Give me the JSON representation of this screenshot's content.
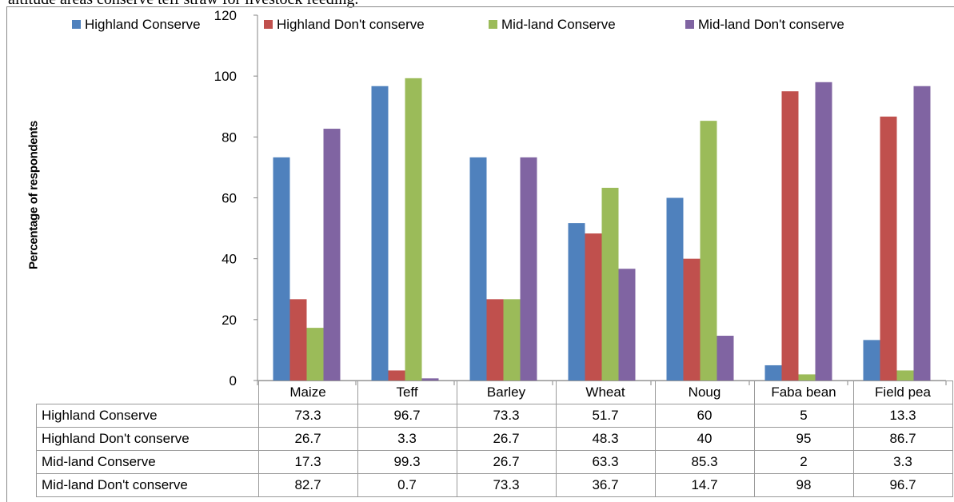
{
  "caption": "altitude areas conserve teff straw for livestock feeding.",
  "chart_data": {
    "type": "bar",
    "ylabel": "Percentage of respondents",
    "ylim": [
      0,
      120
    ],
    "yticks": [
      "0",
      "20",
      "40",
      "60",
      "80",
      "100",
      "120"
    ],
    "categories": [
      "Maize",
      "Teff",
      "Barley",
      "Wheat",
      "Noug",
      "Faba bean",
      "Field pea"
    ],
    "legend_position": "top",
    "grid": false,
    "series": [
      {
        "name": "Highland Conserve",
        "color": "#4f81bd",
        "values": [
          73.3,
          96.7,
          73.3,
          51.7,
          60,
          5,
          13.3
        ],
        "labels": [
          "73.3",
          "96.7",
          "73.3",
          "51.7",
          "60",
          "5",
          "13.3"
        ]
      },
      {
        "name": "Highland Don't conserve",
        "color": "#c0504d",
        "values": [
          26.7,
          3.3,
          26.7,
          48.3,
          40,
          95,
          86.7
        ],
        "labels": [
          "26.7",
          "3.3",
          "26.7",
          "48.3",
          "40",
          "95",
          "86.7"
        ]
      },
      {
        "name": "Mid-land Conserve",
        "color": "#9bbb59",
        "values": [
          17.3,
          99.3,
          26.7,
          63.3,
          85.3,
          2,
          3.3
        ],
        "labels": [
          "17.3",
          "99.3",
          "26.7",
          "63.3",
          "85.3",
          "2",
          "3.3"
        ]
      },
      {
        "name": "Mid-land Don't conserve",
        "color": "#8064a2",
        "values": [
          82.7,
          0.7,
          73.3,
          36.7,
          14.7,
          98,
          96.7
        ],
        "labels": [
          "82.7",
          "0.7",
          "73.3",
          "36.7",
          "14.7",
          "98",
          "96.7"
        ]
      }
    ]
  }
}
